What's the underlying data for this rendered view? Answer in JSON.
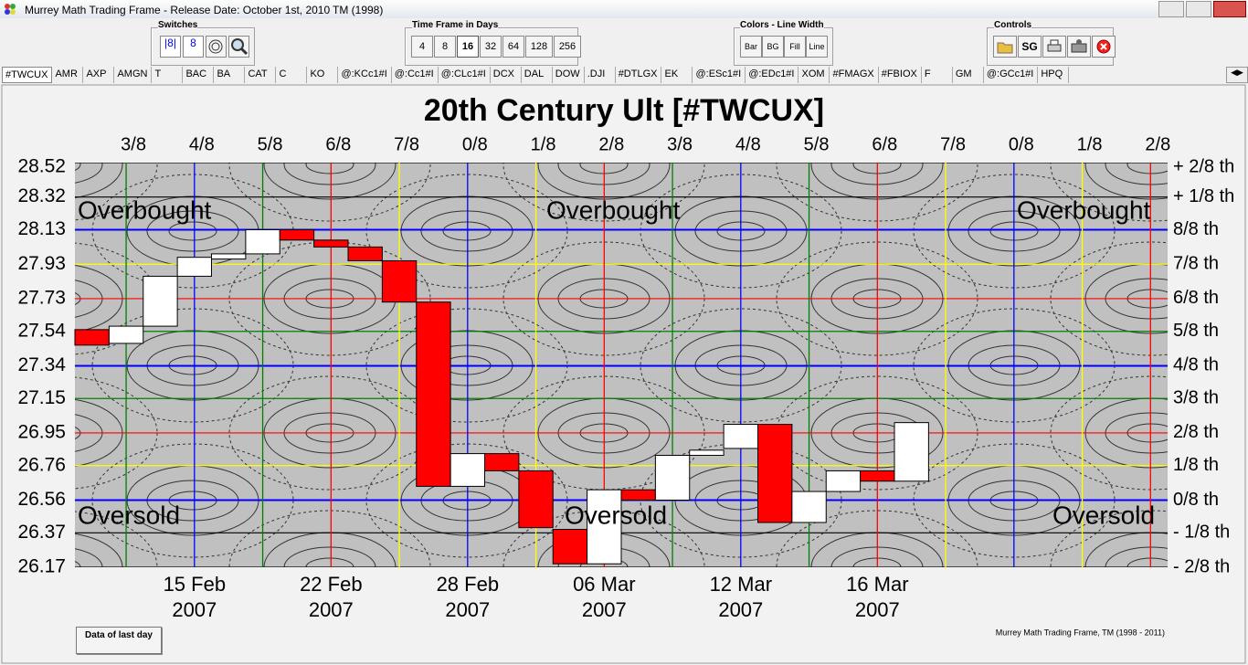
{
  "window": {
    "title": "Murrey Math Trading Frame - Release Date: October 1st, 2010",
    "mark": "TM (1998)"
  },
  "toolbar": {
    "switches": {
      "label": "Switches"
    },
    "timeframe": {
      "label": "Time Frame in Days",
      "buttons": [
        "4",
        "8",
        "16",
        "32",
        "64",
        "128",
        "256"
      ],
      "active": "16"
    },
    "colors": {
      "label": "Colors - Line Width",
      "buttons": [
        "Bar",
        "BG",
        "Fill",
        "Line"
      ]
    },
    "controls": {
      "label": "Controls",
      "sg": "SG"
    }
  },
  "tabs": [
    "#TWCUX",
    "AMR",
    "AXP",
    "AMGN",
    "T",
    "BAC",
    "BA",
    "CAT",
    "C",
    "KO",
    "@:KCc1#I",
    "@:Cc1#I",
    "@:CLc1#I",
    "DCX",
    "DAL",
    "DOW",
    ".DJI",
    "#DTLGX",
    "EK",
    "@:ESc1#I",
    "@:EDc1#I",
    "XOM",
    "#FMAGX",
    "#FBIOX",
    "F",
    "GM",
    "@:GCc1#I",
    "HPQ"
  ],
  "chart_data": {
    "type": "candlestick",
    "title": "20th Century Ult [#TWCUX]",
    "categories": [
      null,
      null,
      null,
      "15 Feb 2007",
      null,
      null,
      null,
      "22 Feb 2007",
      null,
      null,
      null,
      "28 Feb 2007",
      null,
      null,
      null,
      "06 Mar 2007",
      null,
      null,
      null,
      "12 Mar 2007",
      null,
      null,
      null,
      "16 Mar 2007",
      null,
      null,
      null,
      null,
      null,
      null,
      null,
      null
    ],
    "open": [
      27.55,
      27.47,
      27.57,
      27.86,
      27.96,
      27.99,
      28.13,
      28.07,
      28.03,
      27.95,
      27.71,
      26.64,
      26.83,
      26.73,
      26.39,
      26.19,
      26.62,
      26.56,
      26.82,
      26.86,
      27.0,
      26.43,
      26.61,
      26.73,
      26.67,
      null,
      null,
      null,
      null,
      null,
      null,
      null
    ],
    "close": [
      27.46,
      27.57,
      27.86,
      27.97,
      27.99,
      28.13,
      28.07,
      28.03,
      27.95,
      27.71,
      26.64,
      26.83,
      26.73,
      26.4,
      26.19,
      26.62,
      26.56,
      26.82,
      26.85,
      27.0,
      26.43,
      26.61,
      26.73,
      26.67,
      27.01,
      null,
      null,
      null,
      null,
      null,
      null,
      null
    ],
    "up_color": "#ffffff",
    "down_color": "#ff0000",
    "ylim": [
      26.17,
      28.52
    ],
    "yticks": [
      28.52,
      28.32,
      28.13,
      27.93,
      27.73,
      27.54,
      27.34,
      27.15,
      26.95,
      26.76,
      26.56,
      26.37,
      26.17
    ],
    "level_labels": [
      "+ 2/8 th",
      "+ 1/8 th",
      "8/8 th",
      "7/8 th",
      "6/8 th",
      "5/8 th",
      "4/8 th",
      "3/8 th",
      "2/8 th",
      "1/8 th",
      "0/8 th",
      "- 1/8 th",
      "- 2/8 th"
    ],
    "grid_colors": [
      "#000000",
      "#000000",
      "#0000ff",
      "#ffff00",
      "#ff0000",
      "#008000",
      "#0000ff",
      "#008000",
      "#ff0000",
      "#ffff00",
      "#0000ff",
      "#000000",
      "#000000"
    ],
    "time_labels": [
      "3/8",
      "4/8",
      "5/8",
      "6/8",
      "7/8",
      "0/8",
      "1/8",
      "2/8",
      "3/8",
      "4/8",
      "5/8",
      "6/8",
      "7/8",
      "0/8",
      "1/8",
      "2/8"
    ],
    "time_line_colors": [
      "#008000",
      "#0000ff",
      "#008000",
      "#ff0000",
      "#ffff00",
      "#0000ff",
      "#ffff00",
      "#ff0000",
      "#008000",
      "#0000ff",
      "#008000",
      "#ff0000",
      "#ffff00",
      "#0000ff",
      "#ffff00",
      "#ff0000"
    ],
    "zone_labels": {
      "overbought": "Overbought",
      "oversold": "Oversold"
    }
  },
  "footer": {
    "button": "Data of last day",
    "copyright": "Murrey Math Trading Frame, TM (1998 - 2011)"
  }
}
